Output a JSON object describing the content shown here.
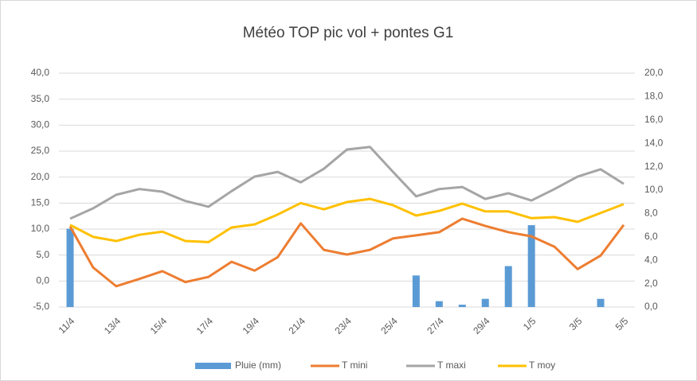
{
  "chart_data": {
    "type": "line",
    "title": "Météo TOP pic vol + pontes G1",
    "categories": [
      "11/4",
      null,
      "13/4",
      null,
      "15/4",
      null,
      "17/4",
      null,
      "19/4",
      null,
      "21/4",
      null,
      "23/4",
      null,
      "25/4",
      null,
      "27/4",
      null,
      "29/4",
      null,
      "1/5",
      null,
      "3/5",
      null,
      "5/5"
    ],
    "series": [
      {
        "name": "Pluie (mm)",
        "color": "#5b9bd5",
        "type": "bar",
        "axis": "y2",
        "values": [
          6.7,
          0,
          0,
          0,
          0,
          0,
          0,
          0,
          0,
          0,
          0,
          0,
          0,
          0,
          0,
          2.7,
          0.5,
          0.2,
          0.7,
          3.5,
          7.0,
          0,
          0,
          0.7,
          0
        ]
      },
      {
        "name": "T mini",
        "color": "#ed7d31",
        "type": "line",
        "values": [
          10.5,
          2.6,
          -1.0,
          0.4,
          1.9,
          -0.2,
          0.8,
          3.7,
          2.0,
          4.6,
          11.1,
          6.0,
          5.1,
          6.0,
          8.2,
          8.8,
          9.4,
          12.0,
          10.6,
          9.4,
          8.6,
          6.6,
          2.3,
          4.9,
          10.8
        ]
      },
      {
        "name": "T maxi",
        "color": "#a5a5a5",
        "type": "line",
        "values": [
          12.0,
          14.0,
          16.6,
          17.7,
          17.2,
          15.4,
          14.3,
          17.3,
          20.1,
          21.0,
          19.0,
          21.6,
          25.3,
          25.8,
          21.0,
          16.3,
          17.7,
          18.1,
          15.8,
          16.9,
          15.5,
          17.7,
          20.1,
          21.5,
          18.7
        ]
      },
      {
        "name": "T moy",
        "color": "#ffc000",
        "type": "line",
        "values": [
          10.8,
          8.5,
          7.7,
          8.9,
          9.5,
          7.7,
          7.5,
          10.3,
          10.9,
          12.8,
          15.0,
          13.8,
          15.2,
          15.8,
          14.6,
          12.6,
          13.5,
          14.9,
          13.4,
          13.4,
          12.1,
          12.3,
          11.4,
          13.1,
          14.8
        ]
      }
    ],
    "ylim": [
      -5,
      40
    ],
    "yticks": [
      {
        "value": -5,
        "label": "-5,0"
      },
      {
        "value": 0,
        "label": "0,0"
      },
      {
        "value": 5,
        "label": "5,0"
      },
      {
        "value": 10,
        "label": "10,0"
      },
      {
        "value": 15,
        "label": "15,0"
      },
      {
        "value": 20,
        "label": "20,0"
      },
      {
        "value": 25,
        "label": "25,0"
      },
      {
        "value": 30,
        "label": "30,0"
      },
      {
        "value": 35,
        "label": "35,0"
      },
      {
        "value": 40,
        "label": "40,0"
      }
    ],
    "y2lim": [
      0,
      20
    ],
    "y2ticks": [
      {
        "value": 0,
        "label": "0,0"
      },
      {
        "value": 2,
        "label": "2,0"
      },
      {
        "value": 4,
        "label": "4,0"
      },
      {
        "value": 6,
        "label": "6,0"
      },
      {
        "value": 8,
        "label": "8,0"
      },
      {
        "value": 10,
        "label": "10,0"
      },
      {
        "value": 12,
        "label": "12,0"
      },
      {
        "value": 14,
        "label": "14,0"
      },
      {
        "value": 16,
        "label": "16,0"
      },
      {
        "value": 18,
        "label": "18,0"
      },
      {
        "value": 20,
        "label": "20,0"
      }
    ],
    "grid": true,
    "legend": "bottom"
  }
}
